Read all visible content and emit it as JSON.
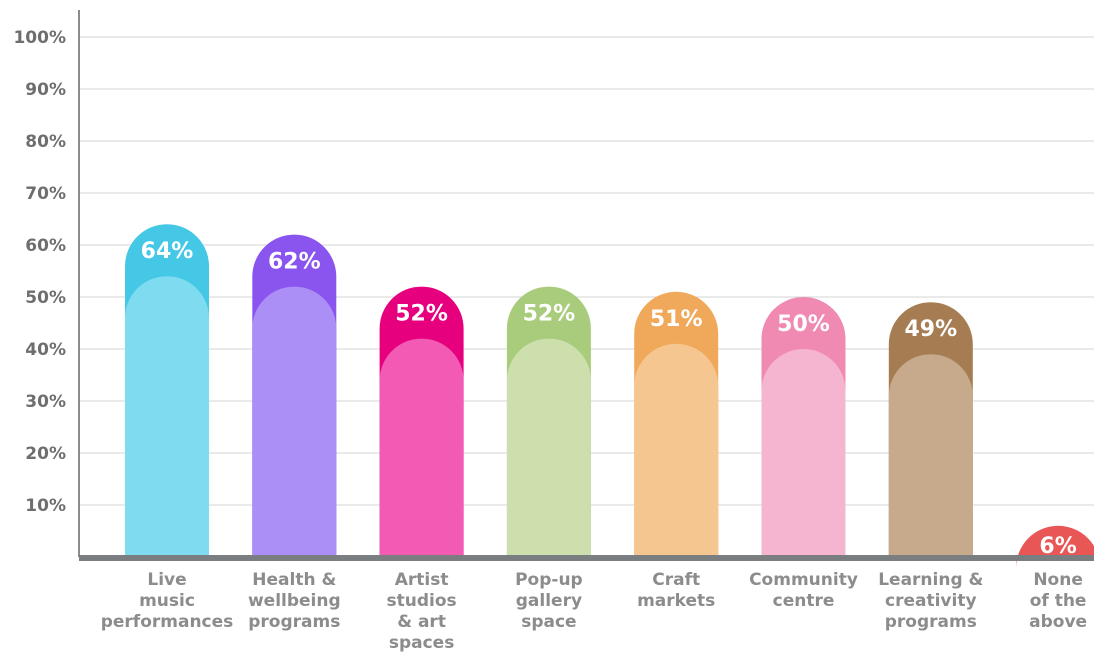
{
  "chart_data": {
    "type": "bar",
    "categories": [
      [
        "Live",
        "music",
        "performances"
      ],
      [
        "Health &",
        "wellbeing",
        "programs"
      ],
      [
        "Artist",
        "studios",
        "& art",
        "spaces"
      ],
      [
        "Pop-up",
        "gallery",
        "space"
      ],
      [
        "Craft",
        "markets"
      ],
      [
        "Community",
        "centre"
      ],
      [
        "Learning &",
        "creativity",
        "programs"
      ],
      [
        "None",
        "of the",
        "above"
      ]
    ],
    "values": [
      64,
      62,
      52,
      52,
      51,
      50,
      49,
      6
    ],
    "value_labels": [
      "64%",
      "62%",
      "52%",
      "52%",
      "51%",
      "50%",
      "49%",
      "6%"
    ],
    "y_ticks": [
      "10%",
      "20%",
      "30%",
      "40%",
      "50%",
      "60%",
      "70%",
      "80%",
      "90%",
      "100%"
    ],
    "ylim": [
      0,
      100
    ],
    "grid": true,
    "colors": {
      "top": [
        "#45c8e6",
        "#8a54ef",
        "#e6007e",
        "#a8cc7c",
        "#f0a85a",
        "#f08ab2",
        "#a67c52",
        "#e85656"
      ],
      "body": [
        "#7fdbef",
        "#ab8ef6",
        "#f25ab4",
        "#ccdfac",
        "#f5c690",
        "#f5b4cf",
        "#c6aa8b",
        "#f08a8a"
      ]
    }
  }
}
